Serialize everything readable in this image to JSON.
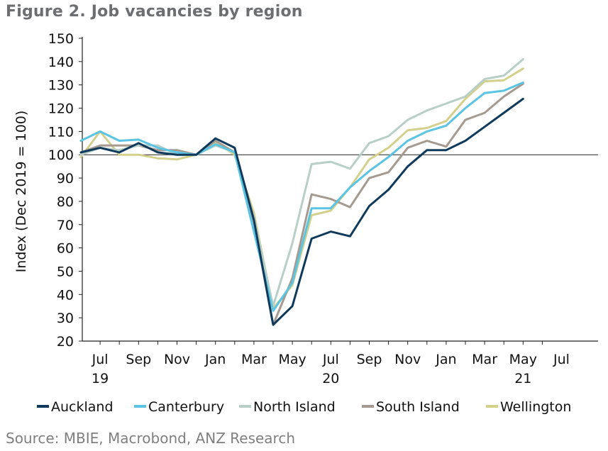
{
  "title": "Figure 2. Job vacancies by region",
  "source": "Source: MBIE, Macrobond, ANZ Research",
  "chart_data": {
    "type": "line",
    "ylabel": "Index (Dec 2019 = 100)",
    "ylim": [
      20,
      150
    ],
    "yticks": [
      20,
      30,
      40,
      50,
      60,
      70,
      80,
      90,
      100,
      110,
      120,
      130,
      140,
      150
    ],
    "reference_line": 100,
    "x": [
      "2019-06",
      "2019-07",
      "2019-08",
      "2019-09",
      "2019-10",
      "2019-11",
      "2019-12",
      "2020-01",
      "2020-02",
      "2020-03",
      "2020-04",
      "2020-05",
      "2020-06",
      "2020-07",
      "2020-08",
      "2020-09",
      "2020-10",
      "2020-11",
      "2020-12",
      "2021-01",
      "2021-02",
      "2021-03",
      "2021-04",
      "2021-05",
      "2021-06"
    ],
    "xticks": [
      {
        "label": "Jul",
        "year": "19"
      },
      {
        "label": "Sep",
        "year": ""
      },
      {
        "label": "Nov",
        "year": ""
      },
      {
        "label": "Jan",
        "year": ""
      },
      {
        "label": "Mar",
        "year": ""
      },
      {
        "label": "May",
        "year": ""
      },
      {
        "label": "Jul",
        "year": "20"
      },
      {
        "label": "Sep",
        "year": ""
      },
      {
        "label": "Nov",
        "year": ""
      },
      {
        "label": "Jan",
        "year": ""
      },
      {
        "label": "Mar",
        "year": ""
      },
      {
        "label": "May",
        "year": "21"
      },
      {
        "label": "Jul",
        "year": ""
      }
    ],
    "series": [
      {
        "name": "Auckland",
        "color": "#0f3a5c",
        "values": [
          101,
          103,
          101,
          105,
          101,
          100,
          100,
          107,
          103,
          72,
          27,
          35,
          64,
          67,
          65,
          78,
          85,
          95,
          102,
          102,
          106,
          112,
          118,
          124,
          null
        ]
      },
      {
        "name": "Canterbury",
        "color": "#5ac4e2",
        "values": [
          106,
          110,
          106,
          106.5,
          103,
          101,
          100,
          104.5,
          101,
          67,
          33,
          45,
          77,
          77,
          86,
          93,
          99,
          106,
          110,
          112.5,
          120,
          126.5,
          127.5,
          131,
          null
        ]
      },
      {
        "name": "North Island",
        "color": "#b8cfc8",
        "values": [
          100,
          103,
          102,
          104,
          104,
          100,
          100,
          104,
          101,
          73,
          35,
          62,
          96,
          97,
          94,
          105,
          108,
          115,
          119,
          122,
          125,
          132.5,
          134,
          141,
          null
        ]
      },
      {
        "name": "South Island",
        "color": "#a59a90",
        "values": [
          101,
          104,
          104,
          104,
          102,
          102,
          100,
          106,
          101,
          71,
          27,
          47,
          83,
          81,
          77.5,
          90,
          92.5,
          103,
          106,
          103.5,
          115,
          118,
          125,
          130.5,
          null
        ]
      },
      {
        "name": "Wellington",
        "color": "#d3d08c",
        "values": [
          99,
          110,
          100,
          100,
          98.5,
          98,
          100,
          105.5,
          100,
          75,
          34,
          44,
          74,
          76,
          86,
          98,
          103,
          110.5,
          111.5,
          114.5,
          124,
          131.5,
          132,
          137,
          null
        ]
      }
    ],
    "legend_position": "bottom"
  }
}
